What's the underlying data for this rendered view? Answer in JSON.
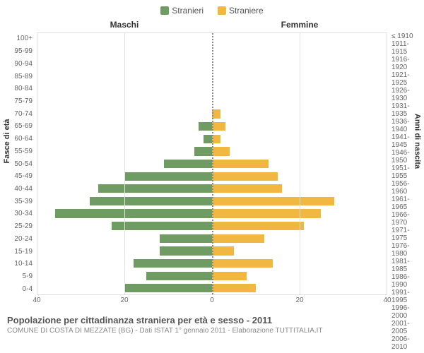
{
  "legend": {
    "male": {
      "label": "Stranieri",
      "color": "#6f9c62"
    },
    "female": {
      "label": "Straniere",
      "color": "#f0b741"
    }
  },
  "headers": {
    "left": "Maschi",
    "right": "Femmine"
  },
  "axis_titles": {
    "left": "Fasce di età",
    "right": "Anni di nascita"
  },
  "age_bands": [
    "100+",
    "95-99",
    "90-94",
    "85-89",
    "80-84",
    "75-79",
    "70-74",
    "65-69",
    "60-64",
    "55-59",
    "50-54",
    "45-49",
    "40-44",
    "35-39",
    "30-34",
    "25-29",
    "20-24",
    "15-19",
    "10-14",
    "5-9",
    "0-4"
  ],
  "birth_years": [
    "≤ 1910",
    "1911-1915",
    "1916-1920",
    "1921-1925",
    "1926-1930",
    "1931-1935",
    "1936-1940",
    "1941-1945",
    "1946-1950",
    "1951-1955",
    "1956-1960",
    "1961-1965",
    "1966-1970",
    "1971-1975",
    "1976-1980",
    "1981-1985",
    "1986-1990",
    "1991-1995",
    "1996-2000",
    "2001-2005",
    "2006-2010"
  ],
  "series": {
    "male": [
      0,
      0,
      0,
      0,
      0,
      0,
      0,
      3,
      2,
      4,
      11,
      20,
      26,
      28,
      36,
      23,
      12,
      12,
      18,
      15,
      20
    ],
    "female": [
      0,
      0,
      0,
      0,
      0,
      0,
      2,
      3,
      2,
      4,
      13,
      15,
      16,
      28,
      25,
      21,
      12,
      5,
      14,
      8,
      10
    ]
  },
  "x_axis": {
    "max": 40,
    "ticks": [
      40,
      20,
      0,
      20,
      40
    ]
  },
  "chart": {
    "grid_color": "#e0e0e0",
    "center_line_color": "#888888",
    "bar_height_pct": 70
  },
  "caption": {
    "title": "Popolazione per cittadinanza straniera per età e sesso - 2011",
    "subtitle": "COMUNE DI COSTA DI MEZZATE (BG) - Dati ISTAT 1° gennaio 2011 - Elaborazione TUTTITALIA.IT"
  }
}
